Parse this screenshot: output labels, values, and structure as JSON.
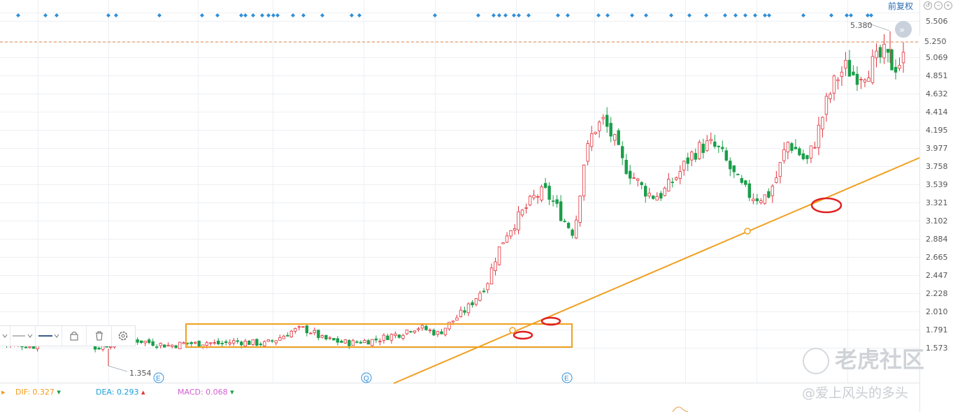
{
  "header": {
    "adjust_label": "前复权",
    "controls": [
      "restore-icon",
      "zoom-out-icon",
      "zoom-in-icon"
    ]
  },
  "chart_data": {
    "type": "candlestick",
    "y_ticks": [
      "5.506",
      "5.250",
      "5.069",
      "4.851",
      "4.632",
      "4.414",
      "4.195",
      "3.977",
      "3.758",
      "3.539",
      "3.321",
      "3.102",
      "2.884",
      "2.665",
      "2.447",
      "2.228",
      "2.010",
      "1.791",
      "1.573"
    ],
    "ylim": [
      1.354,
      5.506
    ],
    "current_price": "5.250",
    "high_label": "5.380",
    "low_label": "1.354",
    "price_path": [
      1.62,
      1.6,
      1.61,
      1.59,
      1.6,
      1.58,
      1.52,
      1.5,
      1.52,
      1.55,
      1.58,
      1.62,
      1.66,
      1.68,
      1.66,
      1.64,
      1.62,
      1.6,
      1.61,
      1.63,
      1.62,
      1.64,
      1.62,
      1.63,
      1.65,
      1.64,
      1.63,
      1.62,
      1.66,
      1.72,
      1.78,
      1.8,
      1.76,
      1.68,
      1.66,
      1.64,
      1.63,
      1.65,
      1.66,
      1.68,
      1.72,
      1.74,
      1.8,
      1.82,
      1.78,
      1.74,
      1.85,
      1.95,
      2.05,
      2.2,
      2.35,
      2.7,
      2.95,
      3.1,
      3.25,
      3.4,
      3.45,
      3.3,
      3.1,
      2.95,
      3.8,
      4.2,
      4.3,
      4.1,
      3.8,
      3.65,
      3.5,
      3.4,
      3.42,
      3.55,
      3.7,
      3.88,
      3.98,
      4.02,
      3.95,
      3.75,
      3.55,
      3.42,
      3.38,
      3.4,
      3.65,
      4.05,
      3.95,
      3.8,
      4.1,
      4.5,
      4.8,
      4.95,
      4.85,
      4.9,
      5.0,
      5.1,
      4.95,
      5.05
    ],
    "annotations": [
      {
        "type": "consolidation-box",
        "label": ""
      },
      {
        "type": "trendline",
        "label": ""
      },
      {
        "type": "support-touch",
        "label": ""
      }
    ],
    "event_markers": [
      "E",
      "Q",
      "E"
    ],
    "grid": true
  },
  "toolbar": {
    "items": [
      "line-style-icon",
      "line-width-icon",
      "lock-icon",
      "delete-icon",
      "settings-icon"
    ]
  },
  "macd": {
    "dif_label": "DIF: 0.327",
    "dea_label": "DEA: 0.293",
    "macd_label": "MACD: 0.068",
    "dif_color": "#f29b1d",
    "dea_color": "#1aa0d8",
    "macd_color": "#d05fd0"
  },
  "watermark": {
    "brand": "老虎社区",
    "author": "@爱上风头的多头"
  },
  "colors": {
    "up": "#e0323a",
    "down": "#1a9e49",
    "annotation": "#f0a020",
    "marker": "#2f8fd8"
  }
}
